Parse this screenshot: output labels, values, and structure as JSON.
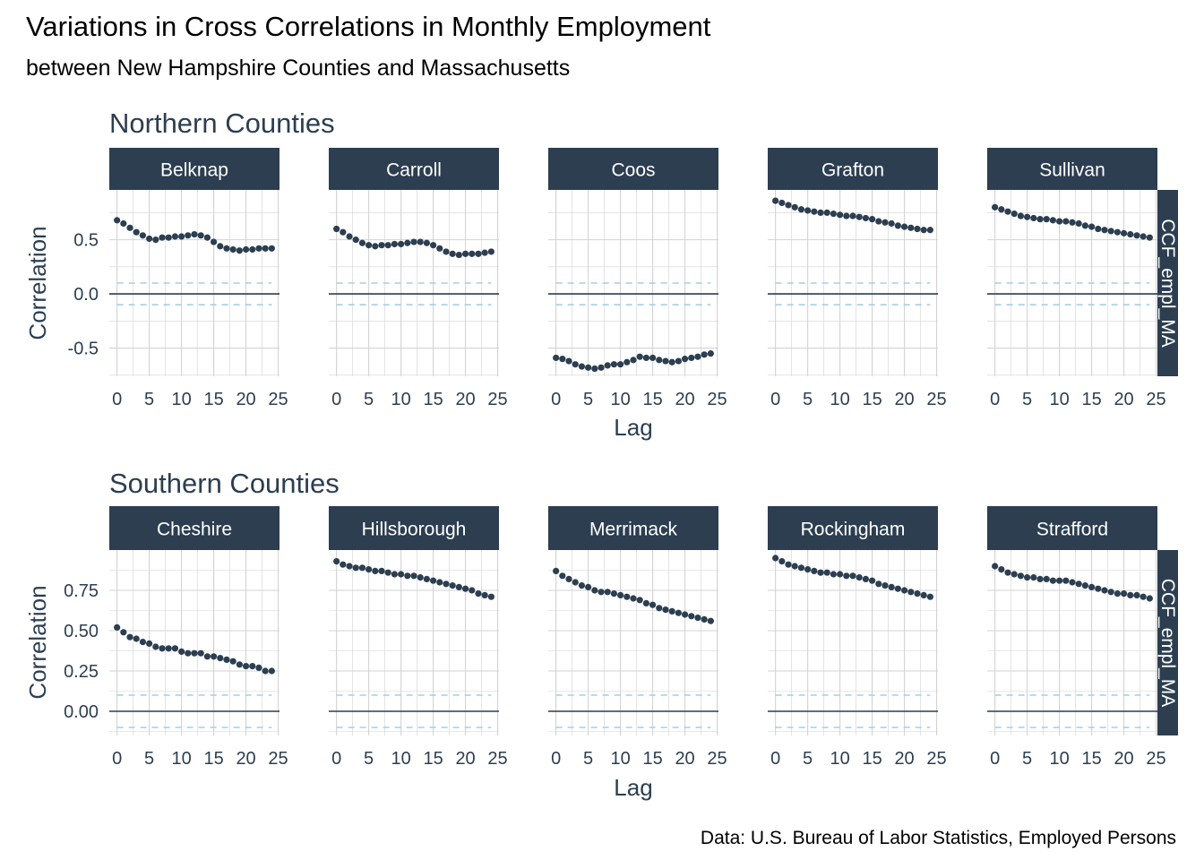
{
  "title": "Variations in Cross Correlations in Monthly Employment",
  "subtitle": "between New Hampshire Counties and Massachusetts",
  "caption": "Data: U.S. Bureau of Labor Statistics, Employed Persons",
  "colors": {
    "strip": "#2c3e50",
    "points": "#2c3e50",
    "grid": "#d3d3d3",
    "zero_line": "#2c3e50",
    "ci_line": "#a6cee3"
  },
  "chart_data": [
    {
      "type": "scatter",
      "group_title": "Northern Counties",
      "side_strip": "CCF_empl_MA",
      "ylabel": "Correlation",
      "xlabel": "Lag",
      "xlim": [
        -1.2,
        25.2
      ],
      "ylim": [
        -0.76,
        0.96
      ],
      "x_ticks": [
        "0",
        "5",
        "10",
        "15",
        "20",
        "25"
      ],
      "y_ticks": [
        {
          "value": 0.5,
          "label": "0.5"
        },
        {
          "value": 0.0,
          "label": "0.0"
        },
        {
          "value": -0.5,
          "label": "-0.5"
        }
      ],
      "ci": 0.1,
      "panels": [
        {
          "name": "Belknap",
          "values": [
            0.68,
            0.65,
            0.61,
            0.57,
            0.54,
            0.51,
            0.5,
            0.52,
            0.52,
            0.53,
            0.53,
            0.54,
            0.55,
            0.54,
            0.52,
            0.48,
            0.44,
            0.42,
            0.41,
            0.4,
            0.41,
            0.41,
            0.42,
            0.42,
            0.42
          ]
        },
        {
          "name": "Carroll",
          "values": [
            0.6,
            0.57,
            0.53,
            0.5,
            0.47,
            0.45,
            0.44,
            0.45,
            0.45,
            0.46,
            0.46,
            0.47,
            0.48,
            0.48,
            0.47,
            0.45,
            0.42,
            0.39,
            0.37,
            0.36,
            0.37,
            0.37,
            0.37,
            0.38,
            0.39
          ]
        },
        {
          "name": "Coos",
          "values": [
            -0.59,
            -0.6,
            -0.62,
            -0.65,
            -0.67,
            -0.68,
            -0.69,
            -0.68,
            -0.66,
            -0.65,
            -0.65,
            -0.63,
            -0.61,
            -0.58,
            -0.59,
            -0.59,
            -0.61,
            -0.62,
            -0.63,
            -0.62,
            -0.6,
            -0.59,
            -0.58,
            -0.56,
            -0.55
          ]
        },
        {
          "name": "Grafton",
          "values": [
            0.86,
            0.84,
            0.82,
            0.8,
            0.78,
            0.77,
            0.76,
            0.75,
            0.75,
            0.74,
            0.73,
            0.72,
            0.72,
            0.71,
            0.7,
            0.69,
            0.67,
            0.66,
            0.65,
            0.63,
            0.62,
            0.61,
            0.6,
            0.59,
            0.59
          ]
        },
        {
          "name": "Sullivan",
          "values": [
            0.8,
            0.78,
            0.76,
            0.74,
            0.72,
            0.71,
            0.7,
            0.69,
            0.69,
            0.68,
            0.67,
            0.67,
            0.66,
            0.65,
            0.63,
            0.62,
            0.6,
            0.59,
            0.58,
            0.57,
            0.56,
            0.55,
            0.54,
            0.53,
            0.52
          ]
        }
      ]
    },
    {
      "type": "scatter",
      "group_title": "Southern Counties",
      "side_strip": "CCF_empl_MA",
      "ylabel": "Correlation",
      "xlabel": "Lag",
      "xlim": [
        -1.2,
        25.2
      ],
      "ylim": [
        -0.15,
        1.0
      ],
      "x_ticks": [
        "0",
        "5",
        "10",
        "15",
        "20",
        "25"
      ],
      "y_ticks": [
        {
          "value": 0.75,
          "label": "0.75"
        },
        {
          "value": 0.5,
          "label": "0.50"
        },
        {
          "value": 0.25,
          "label": "0.25"
        },
        {
          "value": 0.0,
          "label": "0.00"
        }
      ],
      "ci": 0.1,
      "panels": [
        {
          "name": "Cheshire",
          "values": [
            0.52,
            0.49,
            0.46,
            0.45,
            0.43,
            0.42,
            0.4,
            0.39,
            0.39,
            0.39,
            0.37,
            0.36,
            0.36,
            0.36,
            0.34,
            0.34,
            0.33,
            0.32,
            0.31,
            0.29,
            0.28,
            0.28,
            0.27,
            0.25,
            0.25
          ]
        },
        {
          "name": "Hillsborough",
          "values": [
            0.93,
            0.91,
            0.9,
            0.89,
            0.89,
            0.88,
            0.87,
            0.87,
            0.86,
            0.85,
            0.85,
            0.84,
            0.84,
            0.83,
            0.82,
            0.81,
            0.8,
            0.79,
            0.78,
            0.77,
            0.76,
            0.75,
            0.73,
            0.72,
            0.71
          ]
        },
        {
          "name": "Merrimack",
          "values": [
            0.87,
            0.84,
            0.82,
            0.8,
            0.78,
            0.77,
            0.75,
            0.74,
            0.74,
            0.73,
            0.72,
            0.71,
            0.7,
            0.69,
            0.67,
            0.66,
            0.64,
            0.63,
            0.62,
            0.61,
            0.6,
            0.59,
            0.58,
            0.57,
            0.56
          ]
        },
        {
          "name": "Rockingham",
          "values": [
            0.95,
            0.93,
            0.91,
            0.9,
            0.89,
            0.88,
            0.87,
            0.86,
            0.86,
            0.85,
            0.85,
            0.84,
            0.84,
            0.83,
            0.82,
            0.81,
            0.79,
            0.78,
            0.77,
            0.76,
            0.75,
            0.74,
            0.73,
            0.72,
            0.71
          ]
        },
        {
          "name": "Strafford",
          "values": [
            0.9,
            0.88,
            0.86,
            0.85,
            0.84,
            0.83,
            0.83,
            0.82,
            0.82,
            0.81,
            0.81,
            0.81,
            0.8,
            0.79,
            0.78,
            0.77,
            0.76,
            0.75,
            0.74,
            0.73,
            0.73,
            0.72,
            0.72,
            0.71,
            0.7
          ]
        }
      ]
    }
  ]
}
